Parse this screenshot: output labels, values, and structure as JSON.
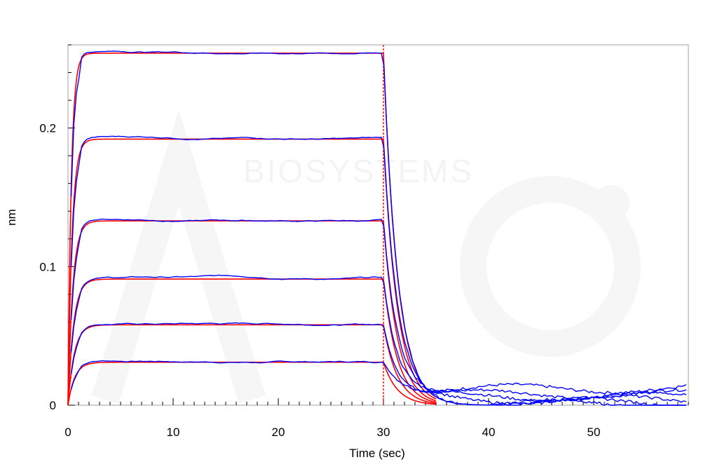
{
  "chart_data": {
    "type": "line",
    "title": "",
    "xlabel": "Time (sec)",
    "ylabel": "nm",
    "xlim": [
      0,
      59
    ],
    "ylim": [
      0,
      0.26
    ],
    "x_ticks": [
      0,
      10,
      20,
      30,
      40,
      50
    ],
    "y_ticks": [
      0,
      0.1,
      0.2
    ],
    "x_tick_labels": [
      "0",
      "10",
      "20",
      "30",
      "40",
      "50"
    ],
    "y_tick_labels": [
      "0",
      "0.1",
      "0.2"
    ],
    "grid": false,
    "legend": "none",
    "association_end": 30,
    "watermark": "BIOSYSTEMS",
    "colors": {
      "data": "#0000ff",
      "fit": "#ff0000"
    },
    "series": [
      {
        "plateau": 0.031,
        "rate": 1.6,
        "tail": 0.012
      },
      {
        "plateau": 0.058,
        "rate": 1.7,
        "tail": 0.008
      },
      {
        "plateau": 0.091,
        "rate": 1.9,
        "tail": 0.006
      },
      {
        "plateau": 0.133,
        "rate": 2.2,
        "tail": 0.004
      },
      {
        "plateau": 0.192,
        "rate": 2.6,
        "tail": 0.002
      },
      {
        "plateau": 0.254,
        "rate": 3.2,
        "tail": 0.001
      }
    ]
  }
}
